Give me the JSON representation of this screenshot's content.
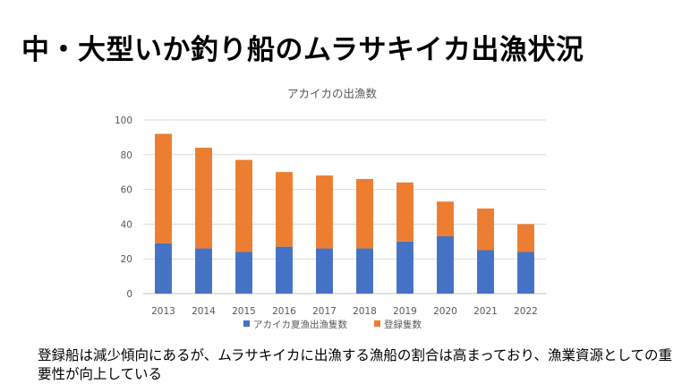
{
  "slide": {
    "title": "中・大型いか釣り船のムラサキイカ出漁状況",
    "caption": "登録船は減少傾向にあるが、ムラサキイカに出漁する漁船の割合は高まっており、漁業資源としての重要性が向上している"
  },
  "chart_data": {
    "type": "bar",
    "stacked": true,
    "title": "アカイカの出漁数",
    "xlabel": "",
    "ylabel": "",
    "ylim": [
      0,
      100
    ],
    "yticks": [
      0,
      20,
      40,
      60,
      80,
      100
    ],
    "grid": true,
    "legend_position": "bottom",
    "categories": [
      "2013",
      "2014",
      "2015",
      "2016",
      "2017",
      "2018",
      "2019",
      "2020",
      "2021",
      "2022"
    ],
    "series": [
      {
        "name": "アカイカ夏漁出漁隻数",
        "color": "#4472C4",
        "values": [
          29,
          26,
          24,
          27,
          26,
          26,
          30,
          33,
          25,
          24
        ]
      },
      {
        "name": "登録隻数",
        "color": "#ED7D31",
        "values": [
          63,
          58,
          53,
          43,
          42,
          40,
          34,
          20,
          24,
          16
        ]
      }
    ]
  }
}
